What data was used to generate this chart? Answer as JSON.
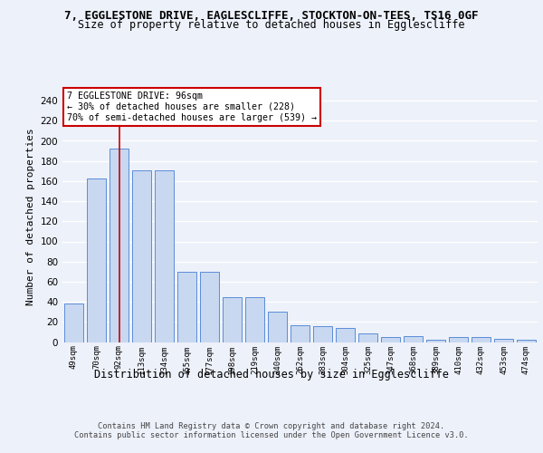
{
  "title1": "7, EGGLESTONE DRIVE, EAGLESCLIFFE, STOCKTON-ON-TEES, TS16 0GF",
  "title2": "Size of property relative to detached houses in Egglescliffe",
  "xlabel": "Distribution of detached houses by size in Egglescliffe",
  "ylabel": "Number of detached properties",
  "categories": [
    "49sqm",
    "70sqm",
    "92sqm",
    "113sqm",
    "134sqm",
    "155sqm",
    "177sqm",
    "198sqm",
    "219sqm",
    "240sqm",
    "262sqm",
    "283sqm",
    "304sqm",
    "325sqm",
    "347sqm",
    "368sqm",
    "389sqm",
    "410sqm",
    "432sqm",
    "453sqm",
    "474sqm"
  ],
  "values": [
    38,
    163,
    192,
    171,
    171,
    70,
    70,
    45,
    45,
    30,
    17,
    16,
    14,
    9,
    5,
    6,
    2,
    5,
    5,
    3,
    2
  ],
  "bar_color": "#c8d8f0",
  "bar_edge_color": "#5b8dd9",
  "vline_x": 2,
  "vline_color": "#cc0000",
  "annotation_text": "7 EGGLESTONE DRIVE: 96sqm\n← 30% of detached houses are smaller (228)\n70% of semi-detached houses are larger (539) →",
  "annotation_box_color": "white",
  "annotation_box_edge": "#cc0000",
  "ylim": [
    0,
    250
  ],
  "yticks": [
    0,
    20,
    40,
    60,
    80,
    100,
    120,
    140,
    160,
    180,
    200,
    220,
    240
  ],
  "footer": "Contains HM Land Registry data © Crown copyright and database right 2024.\nContains public sector information licensed under the Open Government Licence v3.0.",
  "bg_color": "#edf1fa",
  "plot_bg_color": "#edf1fa",
  "grid_color": "#ffffff",
  "title1_fontsize": 9,
  "title2_fontsize": 8.5,
  "xlabel_fontsize": 8.5,
  "ylabel_fontsize": 8
}
